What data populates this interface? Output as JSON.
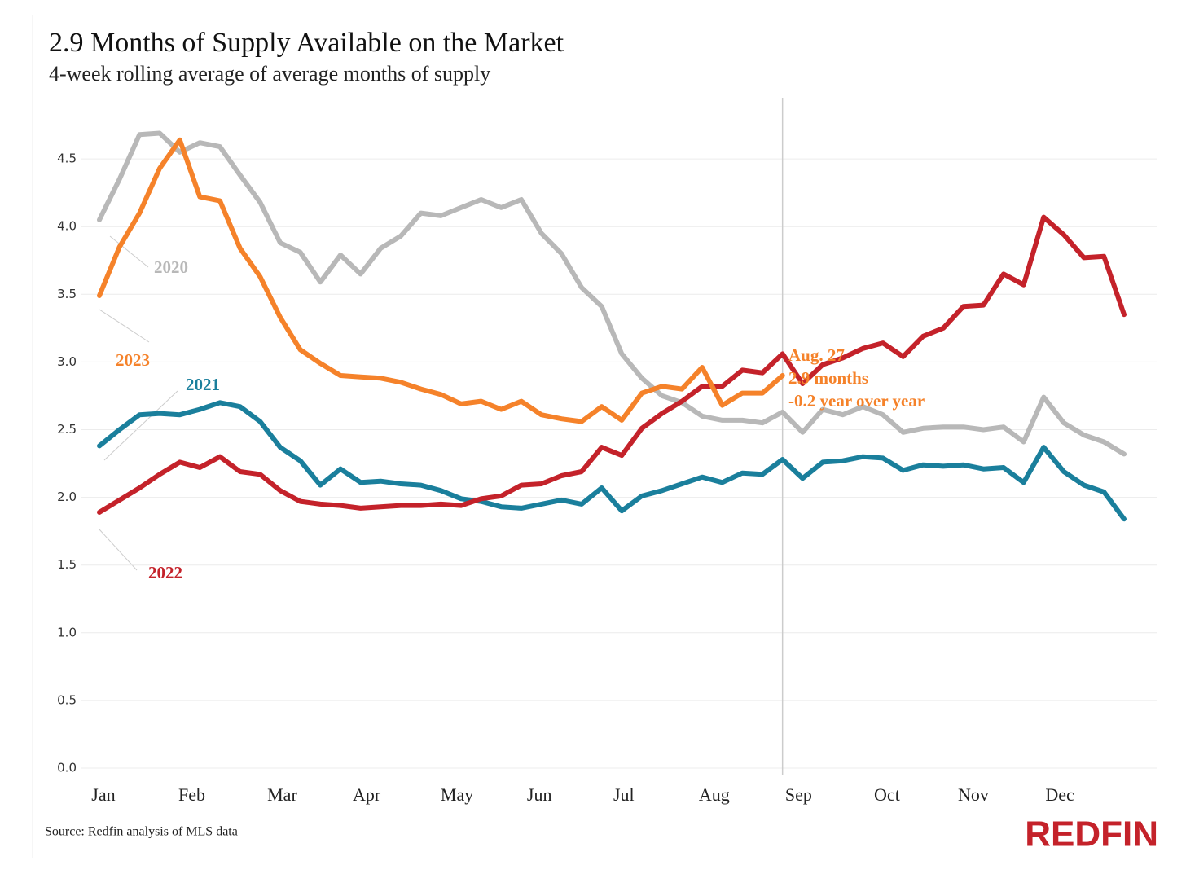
{
  "chart_data": {
    "type": "line",
    "title": "2.9 Months of Supply Available on the Market",
    "subtitle": "4-week rolling average of average months of supply",
    "source": "Source: Redfin analysis of MLS data",
    "brand": "REDFIN",
    "xlim": [
      0,
      51
    ],
    "xticks": [
      {
        "value": 0.2,
        "label": "Jan"
      },
      {
        "value": 4.6,
        "label": "Feb"
      },
      {
        "value": 9.1,
        "label": "Mar"
      },
      {
        "value": 13.3,
        "label": "Apr"
      },
      {
        "value": 17.8,
        "label": "May"
      },
      {
        "value": 21.9,
        "label": "Jun"
      },
      {
        "value": 26.1,
        "label": "Jul"
      },
      {
        "value": 30.6,
        "label": "Aug"
      },
      {
        "value": 34.8,
        "label": "Sep"
      },
      {
        "value": 39.2,
        "label": "Oct"
      },
      {
        "value": 43.5,
        "label": "Nov"
      },
      {
        "value": 47.8,
        "label": "Dec"
      }
    ],
    "ylim": [
      0,
      4.8
    ],
    "yticks": [
      {
        "value": 0,
        "label": "0.0"
      },
      0.5,
      {
        "value": 1,
        "label": "1.0"
      },
      1.5,
      {
        "value": 2,
        "label": "2.0"
      },
      2.5,
      {
        "value": 3,
        "label": "3.0"
      },
      3.5,
      {
        "value": 4,
        "label": "4.0"
      },
      4.5
    ],
    "grid": true,
    "series": [
      {
        "name": "2020",
        "color": "#b8b8b8",
        "values": [
          4.05,
          4.35,
          4.68,
          4.69,
          4.55,
          4.62,
          4.59,
          4.38,
          4.18,
          3.88,
          3.81,
          3.59,
          3.79,
          3.65,
          3.84,
          3.93,
          4.1,
          4.08,
          4.14,
          4.2,
          4.14,
          4.2,
          3.95,
          3.8,
          3.55,
          3.41,
          3.06,
          2.88,
          2.75,
          2.7,
          2.6,
          2.57,
          2.57,
          2.55,
          2.63,
          2.48,
          2.65,
          2.61,
          2.67,
          2.61,
          2.48,
          2.51,
          2.52,
          2.52,
          2.5,
          2.52,
          2.41,
          2.74,
          2.55,
          2.46,
          2.41,
          2.32
        ]
      },
      {
        "name": "2021",
        "color": "#1a7f9c",
        "values": [
          2.38,
          2.5,
          2.61,
          2.62,
          2.61,
          2.65,
          2.7,
          2.67,
          2.56,
          2.37,
          2.27,
          2.09,
          2.21,
          2.11,
          2.12,
          2.1,
          2.09,
          2.05,
          1.99,
          1.97,
          1.93,
          1.92,
          1.95,
          1.98,
          1.95,
          2.07,
          1.9,
          2.01,
          2.05,
          2.1,
          2.15,
          2.11,
          2.18,
          2.17,
          2.28,
          2.14,
          2.26,
          2.27,
          2.3,
          2.29,
          2.2,
          2.24,
          2.23,
          2.24,
          2.21,
          2.22,
          2.11,
          2.37,
          2.19,
          2.09,
          2.04,
          1.84
        ]
      },
      {
        "name": "2022",
        "color": "#c4222a",
        "values": [
          1.89,
          1.98,
          2.07,
          2.17,
          2.26,
          2.22,
          2.3,
          2.19,
          2.17,
          2.05,
          1.97,
          1.95,
          1.94,
          1.92,
          1.93,
          1.94,
          1.94,
          1.95,
          1.94,
          1.99,
          2.01,
          2.09,
          2.1,
          2.16,
          2.19,
          2.37,
          2.31,
          2.51,
          2.62,
          2.71,
          2.82,
          2.82,
          2.94,
          2.92,
          3.06,
          2.84,
          2.98,
          3.03,
          3.1,
          3.14,
          3.04,
          3.19,
          3.25,
          3.41,
          3.42,
          3.65,
          3.57,
          4.07,
          3.94,
          3.77,
          3.78,
          3.35
        ]
      },
      {
        "name": "2023",
        "color": "#f5822a",
        "values": [
          3.49,
          3.85,
          4.1,
          4.43,
          4.64,
          4.22,
          4.19,
          3.84,
          3.63,
          3.33,
          3.09,
          2.99,
          2.9,
          2.89,
          2.88,
          2.85,
          2.8,
          2.76,
          2.69,
          2.71,
          2.65,
          2.71,
          2.61,
          2.58,
          2.56,
          2.67,
          2.57,
          2.77,
          2.82,
          2.8,
          2.96,
          2.68,
          2.77,
          2.77,
          2.9
        ]
      }
    ],
    "annotation": [
      "Aug. 27",
      "2.9 months",
      "-0.2 year over year"
    ]
  }
}
